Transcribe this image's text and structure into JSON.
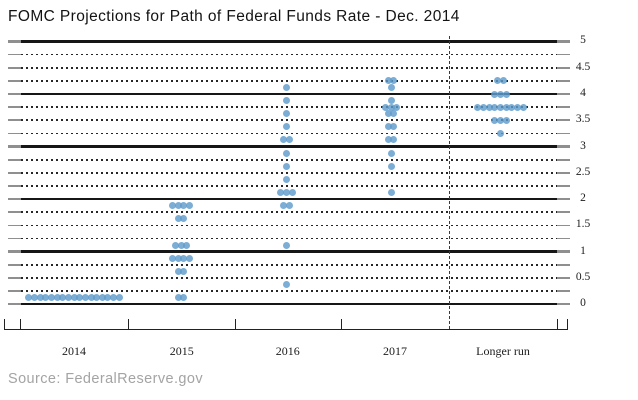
{
  "chart_data": {
    "type": "scatter",
    "subtype": "fomc-dot-plot",
    "title": "FOMC Projections for Path of Federal Funds Rate - Dec. 2014",
    "source": "Source: FederalReserve.gov",
    "ylim": [
      0,
      5
    ],
    "grid_step": 0.25,
    "solid_line_step": 1,
    "ytick_label_step": 0.5,
    "ytick_labels": [
      "5",
      "4.5",
      "4",
      "3.5",
      "3",
      "2.5",
      "2",
      "1.5",
      "1",
      "0.5",
      "0"
    ],
    "ylabel_side": "right",
    "categories": [
      "2014",
      "2015",
      "2016",
      "2017",
      "Longer run"
    ],
    "separator": {
      "before_category": "Longer run",
      "style": "dashed"
    },
    "dot_color": "#5f9bcb",
    "series": [
      {
        "name": "2014",
        "dots": [
          {
            "rate": 0.125,
            "count": 17
          }
        ]
      },
      {
        "name": "2015",
        "dots": [
          {
            "rate": 1.875,
            "count": 4
          },
          {
            "rate": 1.625,
            "count": 2
          },
          {
            "rate": 1.125,
            "count": 3
          },
          {
            "rate": 0.875,
            "count": 4
          },
          {
            "rate": 0.625,
            "count": 2
          },
          {
            "rate": 0.125,
            "count": 2
          }
        ]
      },
      {
        "name": "2016",
        "dots": [
          {
            "rate": 4.125,
            "count": 1
          },
          {
            "rate": 3.875,
            "count": 1
          },
          {
            "rate": 3.625,
            "count": 1
          },
          {
            "rate": 3.375,
            "count": 1
          },
          {
            "rate": 3.125,
            "count": 2
          },
          {
            "rate": 2.875,
            "count": 1
          },
          {
            "rate": 2.625,
            "count": 1
          },
          {
            "rate": 2.375,
            "count": 1
          },
          {
            "rate": 2.125,
            "count": 3
          },
          {
            "rate": 1.875,
            "count": 2
          },
          {
            "rate": 1.125,
            "count": 1
          },
          {
            "rate": 0.375,
            "count": 1
          }
        ]
      },
      {
        "name": "2017",
        "dots": [
          {
            "rate": 4.25,
            "count": 2
          },
          {
            "rate": 4.125,
            "count": 1
          },
          {
            "rate": 3.875,
            "count": 1
          },
          {
            "rate": 3.75,
            "count": 3
          },
          {
            "rate": 3.625,
            "count": 2
          },
          {
            "rate": 3.375,
            "count": 2
          },
          {
            "rate": 3.125,
            "count": 2
          },
          {
            "rate": 2.875,
            "count": 1
          },
          {
            "rate": 2.625,
            "count": 1
          },
          {
            "rate": 2.125,
            "count": 1
          }
        ]
      },
      {
        "name": "Longer run",
        "dots": [
          {
            "rate": 4.25,
            "count": 2
          },
          {
            "rate": 4.0,
            "count": 3
          },
          {
            "rate": 3.75,
            "count": 9
          },
          {
            "rate": 3.5,
            "count": 3
          },
          {
            "rate": 3.25,
            "count": 1
          }
        ]
      }
    ]
  }
}
